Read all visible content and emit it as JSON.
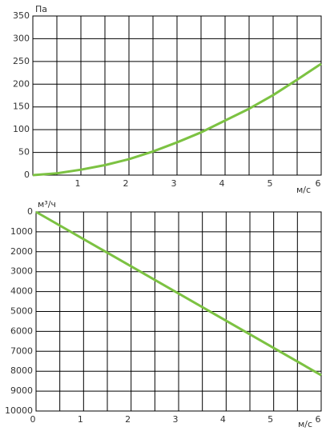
{
  "chart_data": [
    {
      "type": "line",
      "y_label": "Па",
      "x_label": "м/с",
      "x": [
        0,
        0.5,
        1,
        1.5,
        2,
        2.5,
        3,
        3.5,
        4,
        4.5,
        5,
        5.5,
        6
      ],
      "series": [
        {
          "color": "#7cc242",
          "values": [
            0,
            4,
            12,
            22,
            35,
            52,
            72,
            94,
            120,
            146,
            176,
            210,
            245
          ]
        }
      ],
      "xlim": [
        0,
        6
      ],
      "xticks": [
        1,
        2,
        3,
        4,
        5,
        6
      ],
      "ylim": [
        0,
        350
      ],
      "yticks": [
        0,
        50,
        100,
        150,
        200,
        250,
        300,
        350
      ],
      "grid": true
    },
    {
      "type": "line",
      "y_label": "м³/ч",
      "x_label": "м/с",
      "x": [
        0,
        6
      ],
      "series": [
        {
          "color": "#7cc242",
          "values": [
            0,
            8200
          ]
        }
      ],
      "xlim": [
        0,
        6
      ],
      "xticks": [
        0,
        1,
        2,
        3,
        4,
        5,
        6
      ],
      "ylim": [
        0,
        10000
      ],
      "yticks": [
        0,
        1000,
        2000,
        3000,
        4000,
        5000,
        6000,
        7000,
        8000,
        9000,
        10000
      ],
      "y_inverted": true,
      "grid": true
    }
  ]
}
